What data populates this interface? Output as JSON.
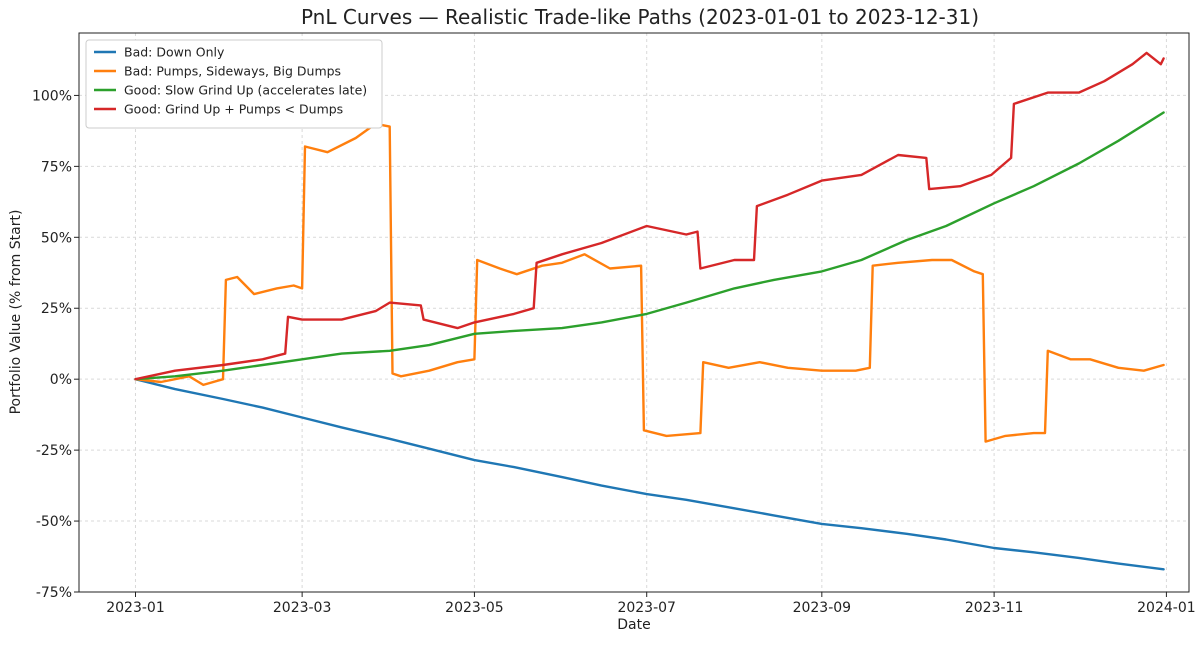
{
  "chart_data": {
    "type": "line",
    "title": "PnL Curves — Realistic Trade-like Paths (2023-01-01 to 2023-12-31)",
    "xlabel": "Date",
    "ylabel": "Portfolio Value (% from Start)",
    "xlim": [
      "2022-12-12",
      "2024-01-09"
    ],
    "ylim": [
      -75,
      122
    ],
    "grid": true,
    "legend_position": "top-left",
    "x_ticks": [
      {
        "date": "2023-01-01",
        "label": "2023-01"
      },
      {
        "date": "2023-03-01",
        "label": "2023-03"
      },
      {
        "date": "2023-05-01",
        "label": "2023-05"
      },
      {
        "date": "2023-07-01",
        "label": "2023-07"
      },
      {
        "date": "2023-09-01",
        "label": "2023-09"
      },
      {
        "date": "2023-11-01",
        "label": "2023-11"
      },
      {
        "date": "2024-01-01",
        "label": "2024-01"
      }
    ],
    "y_ticks": [
      {
        "value": -75,
        "label": "-75%"
      },
      {
        "value": -50,
        "label": "-50%"
      },
      {
        "value": -25,
        "label": "-25%"
      },
      {
        "value": 0,
        "label": "0%"
      },
      {
        "value": 25,
        "label": "25%"
      },
      {
        "value": 50,
        "label": "50%"
      },
      {
        "value": 75,
        "label": "75%"
      },
      {
        "value": 100,
        "label": "100%"
      }
    ],
    "series": [
      {
        "name": "Bad: Down Only",
        "color": "#1f77b4",
        "points": [
          [
            "2023-01-01",
            0
          ],
          [
            "2023-01-15",
            -3.5
          ],
          [
            "2023-02-01",
            -7
          ],
          [
            "2023-02-15",
            -10
          ],
          [
            "2023-03-01",
            -13.5
          ],
          [
            "2023-03-15",
            -17
          ],
          [
            "2023-04-01",
            -21
          ],
          [
            "2023-04-15",
            -24.5
          ],
          [
            "2023-05-01",
            -28.5
          ],
          [
            "2023-05-15",
            -31
          ],
          [
            "2023-06-01",
            -34.5
          ],
          [
            "2023-06-15",
            -37.5
          ],
          [
            "2023-07-01",
            -40.5
          ],
          [
            "2023-07-15",
            -42.5
          ],
          [
            "2023-08-01",
            -45.5
          ],
          [
            "2023-08-15",
            -48
          ],
          [
            "2023-09-01",
            -51
          ],
          [
            "2023-09-15",
            -52.5
          ],
          [
            "2023-10-01",
            -54.5
          ],
          [
            "2023-10-15",
            -56.5
          ],
          [
            "2023-11-01",
            -59.5
          ],
          [
            "2023-11-15",
            -61
          ],
          [
            "2023-12-01",
            -63
          ],
          [
            "2023-12-15",
            -65
          ],
          [
            "2023-12-31",
            -67
          ]
        ]
      },
      {
        "name": "Bad: Pumps, Sideways, Big Dumps",
        "color": "#ff7f0e",
        "points": [
          [
            "2023-01-01",
            0
          ],
          [
            "2023-01-10",
            -1
          ],
          [
            "2023-01-20",
            1
          ],
          [
            "2023-01-25",
            -2
          ],
          [
            "2023-02-01",
            0
          ],
          [
            "2023-02-02",
            35
          ],
          [
            "2023-02-06",
            36
          ],
          [
            "2023-02-12",
            30
          ],
          [
            "2023-02-20",
            32
          ],
          [
            "2023-02-26",
            33
          ],
          [
            "2023-03-01",
            32
          ],
          [
            "2023-03-02",
            82
          ],
          [
            "2023-03-10",
            80
          ],
          [
            "2023-03-20",
            85
          ],
          [
            "2023-03-27",
            90
          ],
          [
            "2023-04-01",
            89
          ],
          [
            "2023-04-02",
            2
          ],
          [
            "2023-04-05",
            1
          ],
          [
            "2023-04-15",
            3
          ],
          [
            "2023-04-25",
            6
          ],
          [
            "2023-05-01",
            7
          ],
          [
            "2023-05-02",
            42
          ],
          [
            "2023-05-10",
            39
          ],
          [
            "2023-05-16",
            37
          ],
          [
            "2023-05-25",
            40
          ],
          [
            "2023-06-01",
            41
          ],
          [
            "2023-06-09",
            44
          ],
          [
            "2023-06-18",
            39
          ],
          [
            "2023-06-29",
            40
          ],
          [
            "2023-06-30",
            -18
          ],
          [
            "2023-07-08",
            -20
          ],
          [
            "2023-07-20",
            -19
          ],
          [
            "2023-07-21",
            6
          ],
          [
            "2023-07-30",
            4
          ],
          [
            "2023-08-10",
            6
          ],
          [
            "2023-08-20",
            4
          ],
          [
            "2023-09-01",
            3
          ],
          [
            "2023-09-13",
            3
          ],
          [
            "2023-09-18",
            4
          ],
          [
            "2023-09-19",
            40
          ],
          [
            "2023-09-28",
            41
          ],
          [
            "2023-10-10",
            42
          ],
          [
            "2023-10-17",
            42
          ],
          [
            "2023-10-25",
            38
          ],
          [
            "2023-10-28",
            37
          ],
          [
            "2023-10-29",
            -22
          ],
          [
            "2023-11-05",
            -20
          ],
          [
            "2023-11-15",
            -19
          ],
          [
            "2023-11-19",
            -19
          ],
          [
            "2023-11-20",
            10
          ],
          [
            "2023-11-28",
            7
          ],
          [
            "2023-12-05",
            7
          ],
          [
            "2023-12-15",
            4
          ],
          [
            "2023-12-24",
            3
          ],
          [
            "2023-12-31",
            5
          ]
        ]
      },
      {
        "name": "Good: Slow Grind Up (accelerates late)",
        "color": "#2ca02c",
        "points": [
          [
            "2023-01-01",
            0
          ],
          [
            "2023-01-15",
            1
          ],
          [
            "2023-02-01",
            3
          ],
          [
            "2023-02-15",
            5
          ],
          [
            "2023-03-01",
            7
          ],
          [
            "2023-03-15",
            9
          ],
          [
            "2023-04-01",
            10
          ],
          [
            "2023-04-15",
            12
          ],
          [
            "2023-05-01",
            16
          ],
          [
            "2023-05-15",
            17
          ],
          [
            "2023-06-01",
            18
          ],
          [
            "2023-06-15",
            20
          ],
          [
            "2023-07-01",
            23
          ],
          [
            "2023-07-15",
            27
          ],
          [
            "2023-08-01",
            32
          ],
          [
            "2023-08-15",
            35
          ],
          [
            "2023-09-01",
            38
          ],
          [
            "2023-09-15",
            42
          ],
          [
            "2023-10-01",
            49
          ],
          [
            "2023-10-15",
            54
          ],
          [
            "2023-11-01",
            62
          ],
          [
            "2023-11-15",
            68
          ],
          [
            "2023-12-01",
            76
          ],
          [
            "2023-12-15",
            84
          ],
          [
            "2023-12-31",
            94
          ]
        ]
      },
      {
        "name": "Good: Grind Up + Pumps < Dumps",
        "color": "#d62728",
        "points": [
          [
            "2023-01-01",
            0
          ],
          [
            "2023-01-15",
            3
          ],
          [
            "2023-02-01",
            5
          ],
          [
            "2023-02-15",
            7
          ],
          [
            "2023-02-23",
            9
          ],
          [
            "2023-02-24",
            22
          ],
          [
            "2023-03-01",
            21
          ],
          [
            "2023-03-15",
            21
          ],
          [
            "2023-03-27",
            24
          ],
          [
            "2023-04-01",
            27
          ],
          [
            "2023-04-12",
            26
          ],
          [
            "2023-04-13",
            21
          ],
          [
            "2023-04-25",
            18
          ],
          [
            "2023-05-01",
            20
          ],
          [
            "2023-05-15",
            23
          ],
          [
            "2023-05-22",
            25
          ],
          [
            "2023-05-23",
            41
          ],
          [
            "2023-06-01",
            44
          ],
          [
            "2023-06-15",
            48
          ],
          [
            "2023-07-01",
            54
          ],
          [
            "2023-07-15",
            51
          ],
          [
            "2023-07-19",
            52
          ],
          [
            "2023-07-20",
            39
          ],
          [
            "2023-08-01",
            42
          ],
          [
            "2023-08-08",
            42
          ],
          [
            "2023-08-09",
            61
          ],
          [
            "2023-08-20",
            65
          ],
          [
            "2023-09-01",
            70
          ],
          [
            "2023-09-15",
            72
          ],
          [
            "2023-09-28",
            79
          ],
          [
            "2023-10-08",
            78
          ],
          [
            "2023-10-09",
            67
          ],
          [
            "2023-10-20",
            68
          ],
          [
            "2023-10-31",
            72
          ],
          [
            "2023-11-07",
            78
          ],
          [
            "2023-11-08",
            97
          ],
          [
            "2023-11-20",
            101
          ],
          [
            "2023-12-01",
            101
          ],
          [
            "2023-12-10",
            105
          ],
          [
            "2023-12-20",
            111
          ],
          [
            "2023-12-25",
            115
          ],
          [
            "2023-12-30",
            111
          ],
          [
            "2023-12-31",
            113
          ]
        ]
      }
    ]
  }
}
